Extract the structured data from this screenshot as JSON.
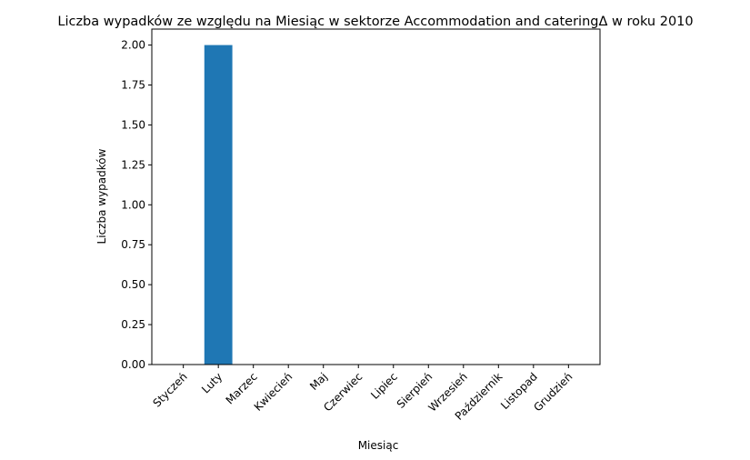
{
  "chart_data": {
    "type": "bar",
    "title": "Liczba wypadków ze względu na Miesiąc w sektorze Accommodation and cateringΔ w roku 2010",
    "xlabel": "Miesiąc",
    "ylabel": "Liczba wypadków",
    "categories": [
      "Styczeń",
      "Luty",
      "Marzec",
      "Kwiecień",
      "Maj",
      "Czerwiec",
      "Lipiec",
      "Sierpień",
      "Wrzesień",
      "Październik",
      "Listopad",
      "Grudzień"
    ],
    "values": [
      0,
      2,
      0,
      0,
      0,
      0,
      0,
      0,
      0,
      0,
      0,
      0
    ],
    "ylim": [
      0,
      2.1
    ],
    "yticks": [
      "0.00",
      "0.25",
      "0.50",
      "0.75",
      "1.00",
      "1.25",
      "1.50",
      "1.75",
      "2.00"
    ],
    "bar_color": "#1f77b4",
    "grid": false,
    "legend": "none"
  }
}
